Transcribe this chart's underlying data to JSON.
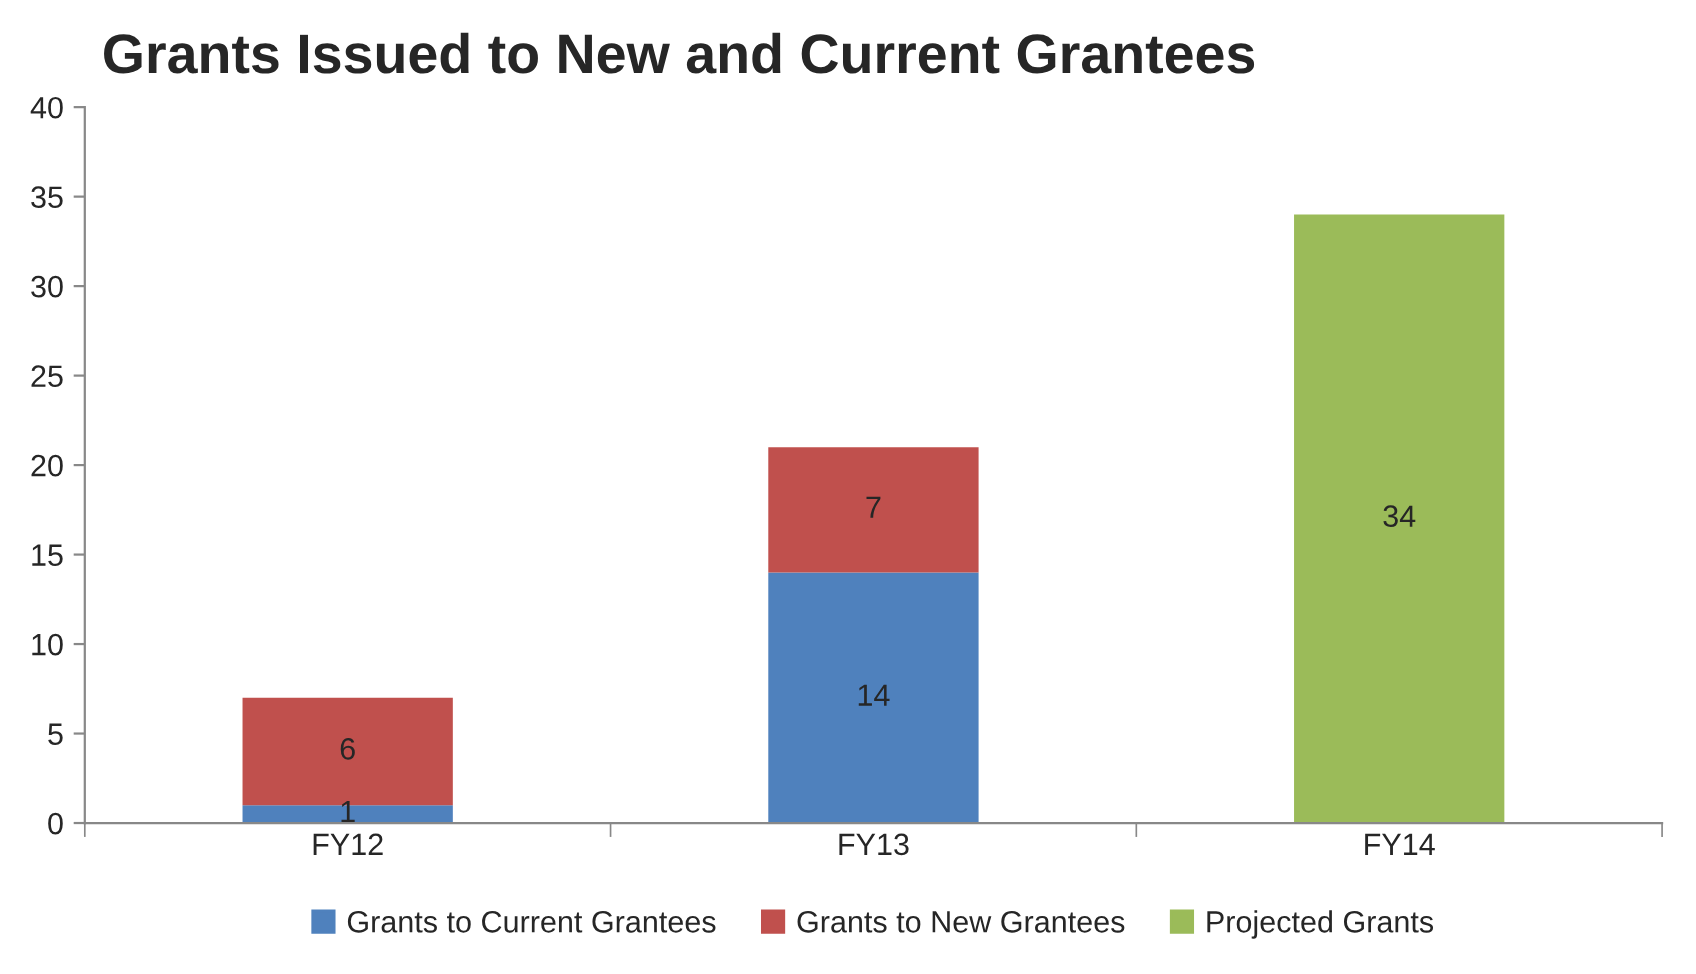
{
  "chart_data": {
    "type": "bar",
    "title": "Grants Issued to New and Current Grantees",
    "categories": [
      "FY12",
      "FY13",
      "FY14"
    ],
    "series": [
      {
        "name": "Grants to Current Grantees",
        "color": "#4f81bd",
        "values": [
          1,
          14,
          null
        ]
      },
      {
        "name": "Grants to New Grantees",
        "color": "#c0504d",
        "values": [
          6,
          7,
          null
        ]
      },
      {
        "name": "Projected Grants",
        "color": "#9bbb59",
        "values": [
          null,
          null,
          34
        ]
      }
    ],
    "stacked": true,
    "data_labels": true,
    "ylim": [
      0,
      40
    ],
    "yticks": [
      0,
      5,
      10,
      15,
      20,
      25,
      30,
      35,
      40
    ],
    "grid": false,
    "legend": "bottom"
  }
}
